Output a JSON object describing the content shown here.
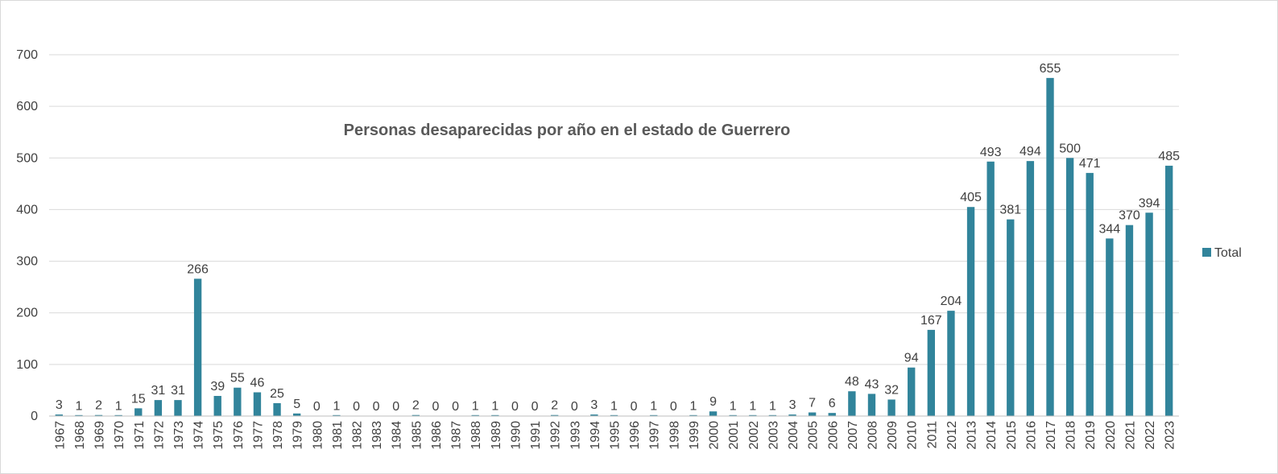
{
  "chart_data": {
    "type": "bar",
    "title": "Personas desaparecidas por año en el estado de Guerrero",
    "xlabel": "",
    "ylabel": "",
    "ylim": [
      0,
      700
    ],
    "yticks": [
      "0",
      "100",
      "200",
      "300",
      "400",
      "500",
      "600",
      "700"
    ],
    "grid": true,
    "legend_position": "right",
    "bar_color": "#31849b",
    "categories": [
      "1967",
      "1968",
      "1969",
      "1970",
      "1971",
      "1972",
      "1973",
      "1974",
      "1975",
      "1976",
      "1977",
      "1978",
      "1979",
      "1980",
      "1981",
      "1982",
      "1983",
      "1984",
      "1985",
      "1986",
      "1987",
      "1988",
      "1989",
      "1990",
      "1991",
      "1992",
      "1993",
      "1994",
      "1995",
      "1996",
      "1997",
      "1998",
      "1999",
      "2000",
      "2001",
      "2002",
      "2003",
      "2004",
      "2005",
      "2006",
      "2007",
      "2008",
      "2009",
      "2010",
      "2011",
      "2012",
      "2013",
      "2014",
      "2015",
      "2016",
      "2017",
      "2018",
      "2019",
      "2020",
      "2021",
      "2022",
      "2023"
    ],
    "series": [
      {
        "name": "Total",
        "values": [
          3,
          1,
          2,
          1,
          15,
          31,
          31,
          266,
          39,
          55,
          46,
          25,
          5,
          0,
          1,
          0,
          0,
          0,
          2,
          0,
          0,
          1,
          1,
          0,
          0,
          2,
          0,
          3,
          1,
          0,
          1,
          0,
          1,
          9,
          1,
          1,
          1,
          3,
          7,
          6,
          48,
          43,
          32,
          94,
          167,
          204,
          405,
          493,
          381,
          494,
          655,
          500,
          471,
          344,
          370,
          394,
          485
        ]
      }
    ]
  }
}
